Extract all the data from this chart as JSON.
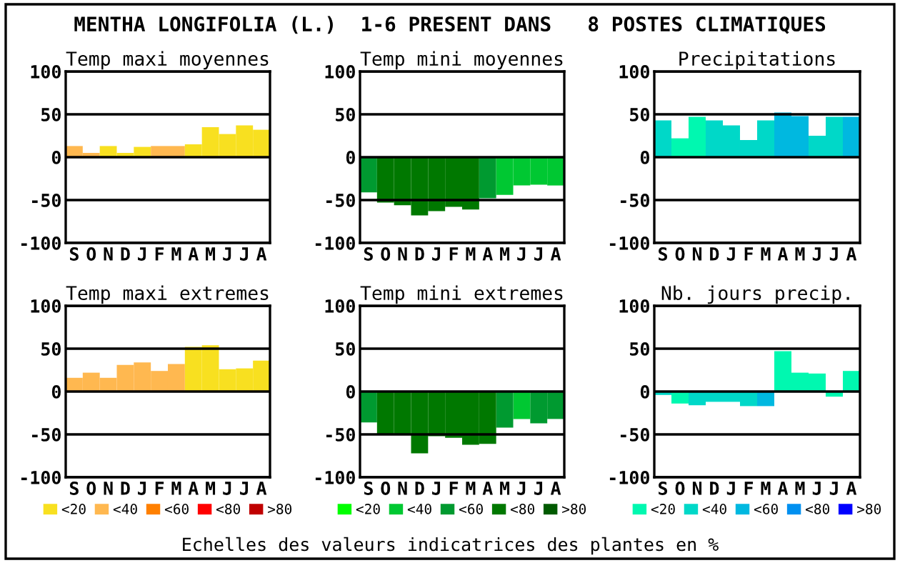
{
  "chart_data": [
    {
      "type": "bar",
      "title": "Temp maxi moyennes",
      "categories": [
        "S",
        "O",
        "N",
        "D",
        "J",
        "F",
        "M",
        "A",
        "M",
        "J",
        "J",
        "A"
      ],
      "values": [
        13,
        5,
        13,
        5,
        12,
        13,
        13,
        15,
        35,
        27,
        37,
        32
      ],
      "colors": [
        "#ffb850",
        "#ffb850",
        "#f8e020",
        "#f8e020",
        "#f8e020",
        "#ffb850",
        "#ffb850",
        "#f8e020",
        "#f8e020",
        "#f8e020",
        "#f8e020",
        "#f8e020"
      ],
      "ylim": [
        -100,
        100
      ],
      "yticks": [
        -100,
        -50,
        0,
        50,
        100
      ],
      "grid": "y",
      "legend": false,
      "annotations": [
        "MENTHA LONGIFOLIA (L.)  1-6 PRESENT DANS   8 POSTES CLIMATIQUES"
      ]
    },
    {
      "type": "bar",
      "title": "Temp mini moyennes",
      "categories": [
        "S",
        "O",
        "N",
        "D",
        "J",
        "F",
        "M",
        "A",
        "M",
        "J",
        "J",
        "A"
      ],
      "values": [
        -41,
        -53,
        -56,
        -68,
        -63,
        -58,
        -61,
        -48,
        -44,
        -33,
        -32,
        -33
      ],
      "colors": [
        "#009a30",
        "#007800",
        "#007800",
        "#007800",
        "#007800",
        "#007800",
        "#007800",
        "#009a30",
        "#00c832",
        "#00c832",
        "#00c832",
        "#00c832"
      ],
      "ylim": [
        -100,
        100
      ],
      "yticks": [
        -100,
        -50,
        0,
        50,
        100
      ],
      "grid": "y",
      "legend": false
    },
    {
      "type": "bar",
      "title": "Precipitations",
      "categories": [
        "S",
        "O",
        "N",
        "D",
        "J",
        "F",
        "M",
        "A",
        "M",
        "J",
        "J",
        "A"
      ],
      "values": [
        43,
        22,
        47,
        43,
        37,
        20,
        43,
        52,
        48,
        25,
        47,
        47
      ],
      "colors": [
        "#00d8c8",
        "#00f8b0",
        "#00f8b0",
        "#00d8c8",
        "#00d8c8",
        "#00d8c8",
        "#00d8c8",
        "#00b8e0",
        "#00b8e0",
        "#00d8c8",
        "#00d8c8",
        "#00b8e0"
      ],
      "ylim": [
        -100,
        100
      ],
      "yticks": [
        -100,
        -50,
        0,
        50,
        100
      ],
      "grid": "y",
      "legend": false
    },
    {
      "type": "bar",
      "title": "Temp maxi extremes",
      "categories": [
        "S",
        "O",
        "N",
        "D",
        "J",
        "F",
        "M",
        "A",
        "M",
        "J",
        "J",
        "A"
      ],
      "series": [
        {
          "name": "<20",
          "color": "#f8e020",
          "values": [
            null,
            null,
            null,
            null,
            null,
            null,
            null,
            52,
            54,
            26,
            27,
            36
          ]
        },
        {
          "name": "<40",
          "color": "#ffb850",
          "values": [
            16,
            22,
            16,
            31,
            34,
            24,
            32,
            null,
            null,
            null,
            null,
            null
          ]
        },
        {
          "name": "<60",
          "color": "#ff8000",
          "values": [
            null,
            null,
            null,
            null,
            null,
            null,
            null,
            null,
            null,
            null,
            null,
            null
          ]
        },
        {
          "name": "<80",
          "color": "#ff0000",
          "values": [
            null,
            null,
            null,
            null,
            null,
            null,
            null,
            null,
            null,
            null,
            null,
            null
          ]
        },
        {
          "name": ">80",
          "color": "#c00000",
          "values": [
            null,
            null,
            null,
            null,
            null,
            null,
            null,
            null,
            null,
            null,
            null,
            null
          ]
        }
      ],
      "ylim": [
        -100,
        100
      ],
      "yticks": [
        -100,
        -50,
        0,
        50,
        100
      ],
      "grid": "y",
      "legend": "bottom"
    },
    {
      "type": "bar",
      "title": "Temp mini extremes",
      "categories": [
        "S",
        "O",
        "N",
        "D",
        "J",
        "F",
        "M",
        "A",
        "M",
        "J",
        "J",
        "A"
      ],
      "series": [
        {
          "name": "<20",
          "color": "#00ff00",
          "values": [
            null,
            null,
            null,
            null,
            null,
            null,
            null,
            null,
            null,
            null,
            null,
            null
          ]
        },
        {
          "name": "<40",
          "color": "#00c832",
          "values": [
            null,
            null,
            null,
            null,
            null,
            null,
            null,
            null,
            null,
            -32,
            null,
            null
          ]
        },
        {
          "name": "<60",
          "color": "#009a30",
          "values": [
            -36,
            null,
            null,
            null,
            null,
            null,
            null,
            null,
            -42,
            null,
            -37,
            -32
          ]
        },
        {
          "name": "<80",
          "color": "#007800",
          "values": [
            null,
            -50,
            -50,
            -72,
            -52,
            -54,
            -62,
            -61,
            null,
            null,
            null,
            null
          ]
        },
        {
          "name": ">80",
          "color": "#005a00",
          "values": [
            null,
            null,
            null,
            null,
            null,
            null,
            null,
            null,
            null,
            null,
            null,
            null
          ]
        }
      ],
      "ylim": [
        -100,
        100
      ],
      "yticks": [
        -100,
        -50,
        0,
        50,
        100
      ],
      "grid": "y",
      "legend": "bottom"
    },
    {
      "type": "bar",
      "title": "Nb. jours precip.",
      "categories": [
        "S",
        "O",
        "N",
        "D",
        "J",
        "F",
        "M",
        "A",
        "M",
        "J",
        "J",
        "A"
      ],
      "series": [
        {
          "name": "<20",
          "color": "#00f8b0",
          "values": [
            null,
            -14,
            null,
            null,
            null,
            null,
            null,
            47,
            22,
            21,
            -6,
            24
          ]
        },
        {
          "name": "<40",
          "color": "#00d8c8",
          "values": [
            -4,
            null,
            -16,
            -12,
            -12,
            -17,
            null,
            null,
            null,
            null,
            null,
            null
          ]
        },
        {
          "name": "<60",
          "color": "#00b8e0",
          "values": [
            null,
            null,
            null,
            null,
            null,
            null,
            -17,
            null,
            null,
            null,
            null,
            null
          ]
        },
        {
          "name": "<80",
          "color": "#0090f0",
          "values": [
            null,
            null,
            null,
            null,
            null,
            null,
            null,
            null,
            null,
            null,
            null,
            null
          ]
        },
        {
          "name": ">80",
          "color": "#0000ff",
          "values": [
            null,
            null,
            null,
            null,
            null,
            null,
            null,
            null,
            null,
            null,
            null,
            null
          ]
        }
      ],
      "ylim": [
        -100,
        100
      ],
      "yticks": [
        -100,
        -50,
        0,
        50,
        100
      ],
      "grid": "y",
      "legend": "bottom",
      "annotations": [
        "Echelles des valeurs indicatrices des plantes en %"
      ]
    }
  ]
}
